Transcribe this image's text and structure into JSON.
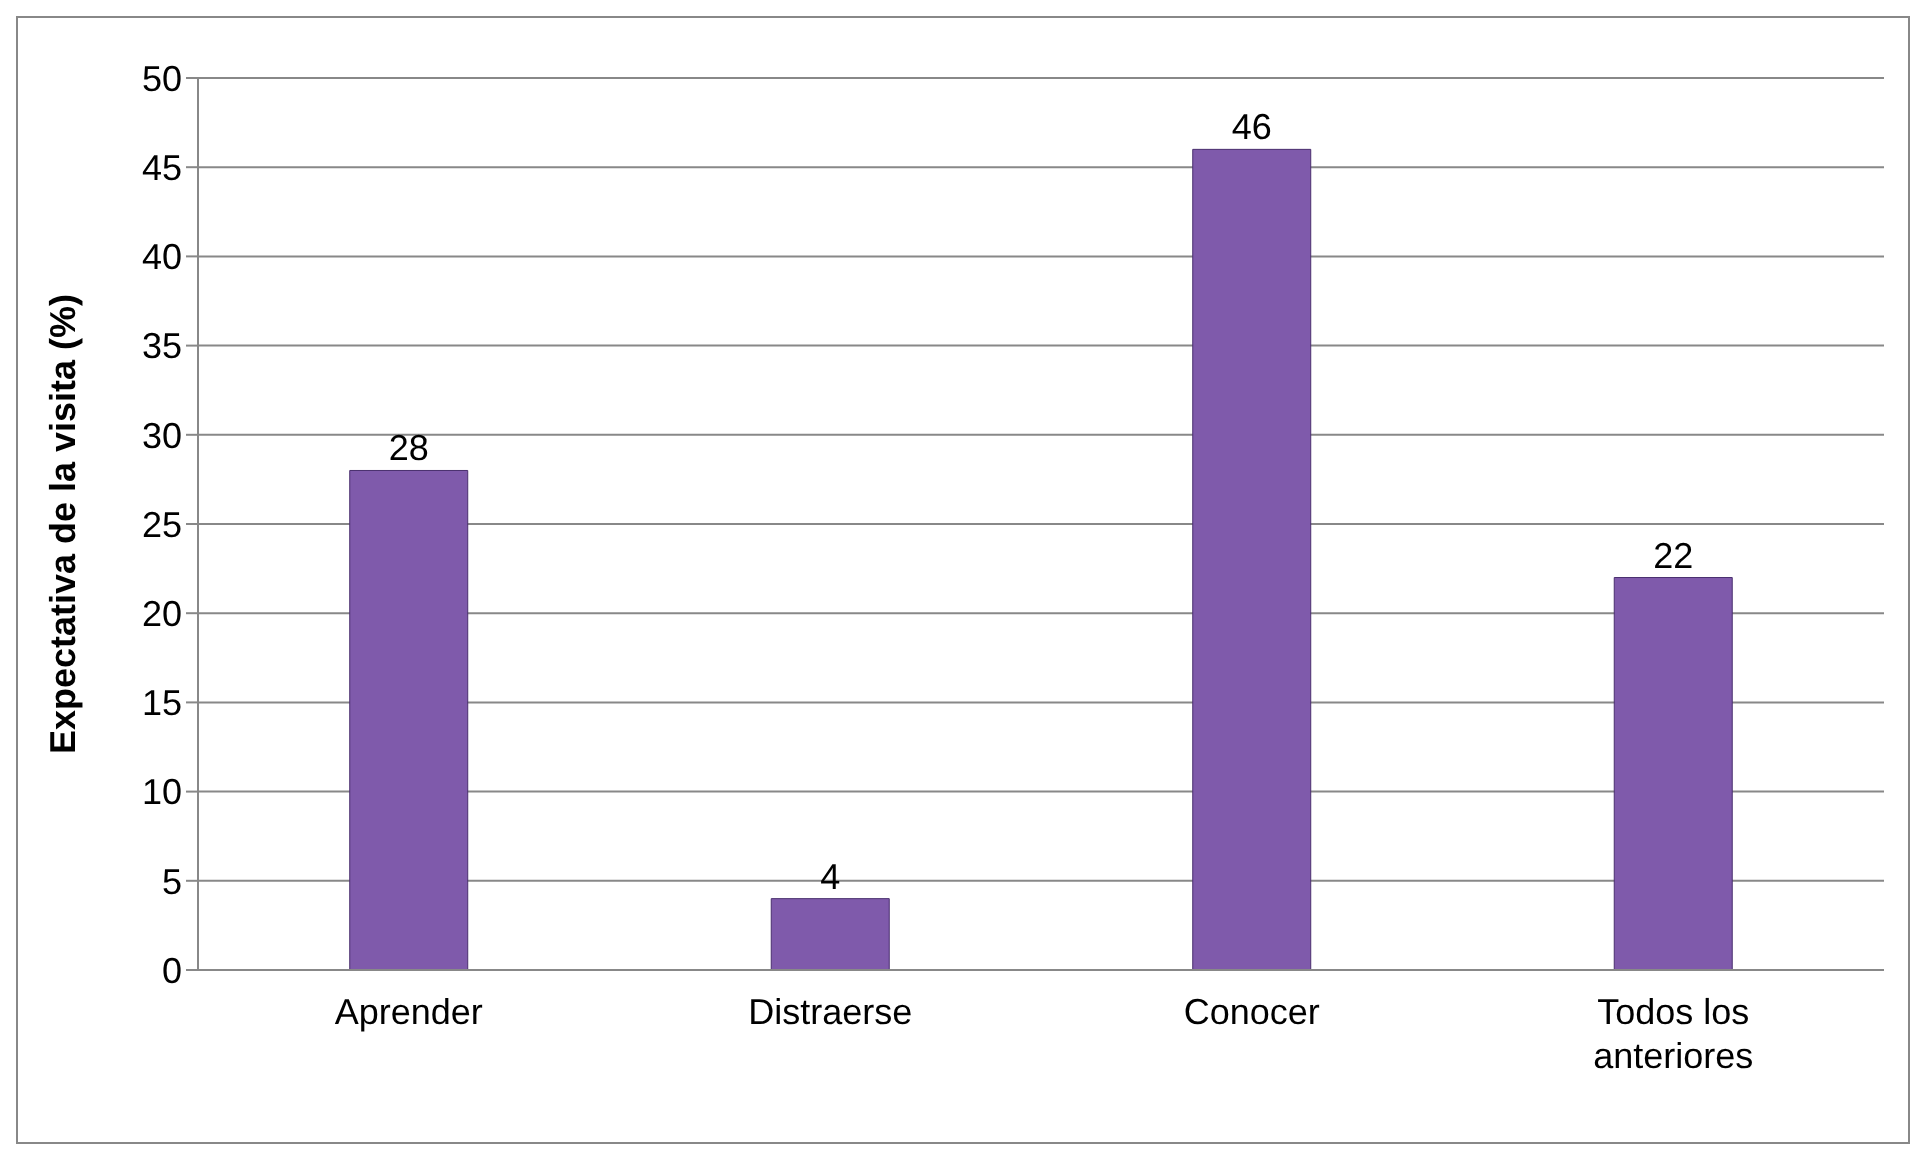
{
  "chart_data": {
    "type": "bar",
    "ylabel": "Expectativa de la visita (%)",
    "categories": [
      "Aprender",
      "Distraerse",
      "Conocer",
      "Todos los anteriores"
    ],
    "values": [
      28,
      4,
      46,
      22
    ],
    "color": "#7f5aab",
    "ylim": [
      0,
      50
    ],
    "yticks": [
      0,
      5,
      10,
      15,
      20,
      25,
      30,
      35,
      40,
      45,
      50
    ],
    "grid": "y",
    "data_labels": true
  }
}
